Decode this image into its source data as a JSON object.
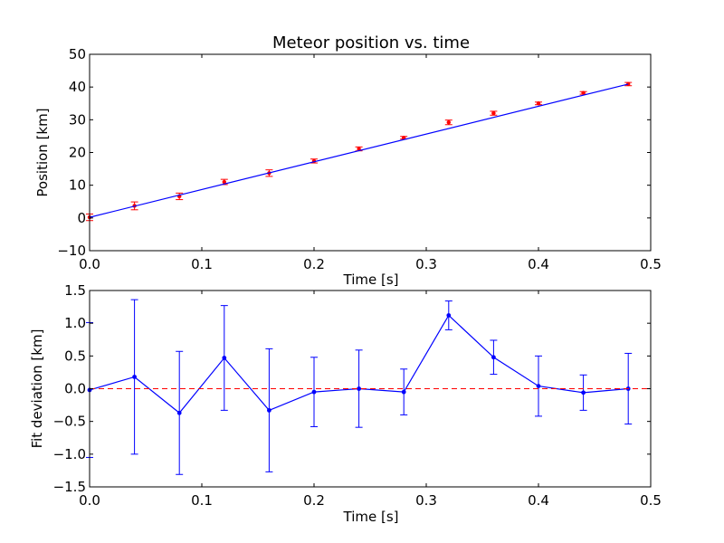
{
  "chart_data": [
    {
      "type": "scatter",
      "title": "Meteor position vs. time",
      "xlabel": "Time [s]",
      "ylabel": "Position [km]",
      "xlim": [
        0,
        0.5
      ],
      "ylim": [
        -10,
        50
      ],
      "xticks": [
        0.0,
        0.1,
        0.2,
        0.3,
        0.4,
        0.5
      ],
      "xtick_labels": [
        "0.0",
        "0.1",
        "0.2",
        "0.3",
        "0.4",
        "0.5"
      ],
      "yticks": [
        -10,
        0,
        10,
        20,
        30,
        40,
        50
      ],
      "ytick_labels": [
        "−10",
        "0",
        "10",
        "20",
        "30",
        "40",
        "50"
      ],
      "grid": false,
      "series": [
        {
          "kind": "errorbar-points",
          "color": "#ff0000",
          "x": [
            0.0,
            0.04,
            0.08,
            0.12,
            0.16,
            0.2,
            0.24,
            0.28,
            0.32,
            0.36,
            0.4,
            0.44,
            0.48
          ],
          "y": [
            0.2,
            3.7,
            6.6,
            11.0,
            13.7,
            17.4,
            21.1,
            24.5,
            29.2,
            32.0,
            35.0,
            38.2,
            40.9
          ],
          "yerr": [
            1.0,
            1.2,
            1.0,
            0.8,
            1.0,
            0.6,
            0.6,
            0.4,
            0.7,
            0.6,
            0.4,
            0.4,
            0.5
          ]
        },
        {
          "kind": "line",
          "color": "#0000ff",
          "x": [
            0.0,
            0.48
          ],
          "y": [
            0.2,
            40.9
          ]
        }
      ]
    },
    {
      "type": "line",
      "title": "",
      "xlabel": "Time [s]",
      "ylabel": "Fit deviation [km]",
      "xlim": [
        0,
        0.5
      ],
      "ylim": [
        -1.5,
        1.5
      ],
      "xticks": [
        0.0,
        0.1,
        0.2,
        0.3,
        0.4,
        0.5
      ],
      "xtick_labels": [
        "0.0",
        "0.1",
        "0.2",
        "0.3",
        "0.4",
        "0.5"
      ],
      "yticks": [
        -1.5,
        -1.0,
        -0.5,
        0.0,
        0.5,
        1.0,
        1.5
      ],
      "ytick_labels": [
        "−1.5",
        "−1.0",
        "−0.5",
        "0.0",
        "0.5",
        "1.0",
        "1.5"
      ],
      "grid": false,
      "series": [
        {
          "kind": "errorbar-line",
          "color": "#0000ff",
          "x": [
            0.0,
            0.04,
            0.08,
            0.12,
            0.16,
            0.2,
            0.24,
            0.28,
            0.32,
            0.36,
            0.4,
            0.44,
            0.48
          ],
          "y": [
            -0.02,
            0.18,
            -0.37,
            0.47,
            -0.33,
            -0.05,
            0.0,
            -0.05,
            1.12,
            0.48,
            0.04,
            -0.06,
            0.0
          ],
          "yerr": [
            1.03,
            1.18,
            0.94,
            0.8,
            0.94,
            0.53,
            0.59,
            0.35,
            0.22,
            0.26,
            0.46,
            0.27,
            0.54
          ]
        },
        {
          "kind": "reference-line",
          "color": "#ff0000",
          "dash": "dashed",
          "y": 0.0
        }
      ]
    }
  ]
}
